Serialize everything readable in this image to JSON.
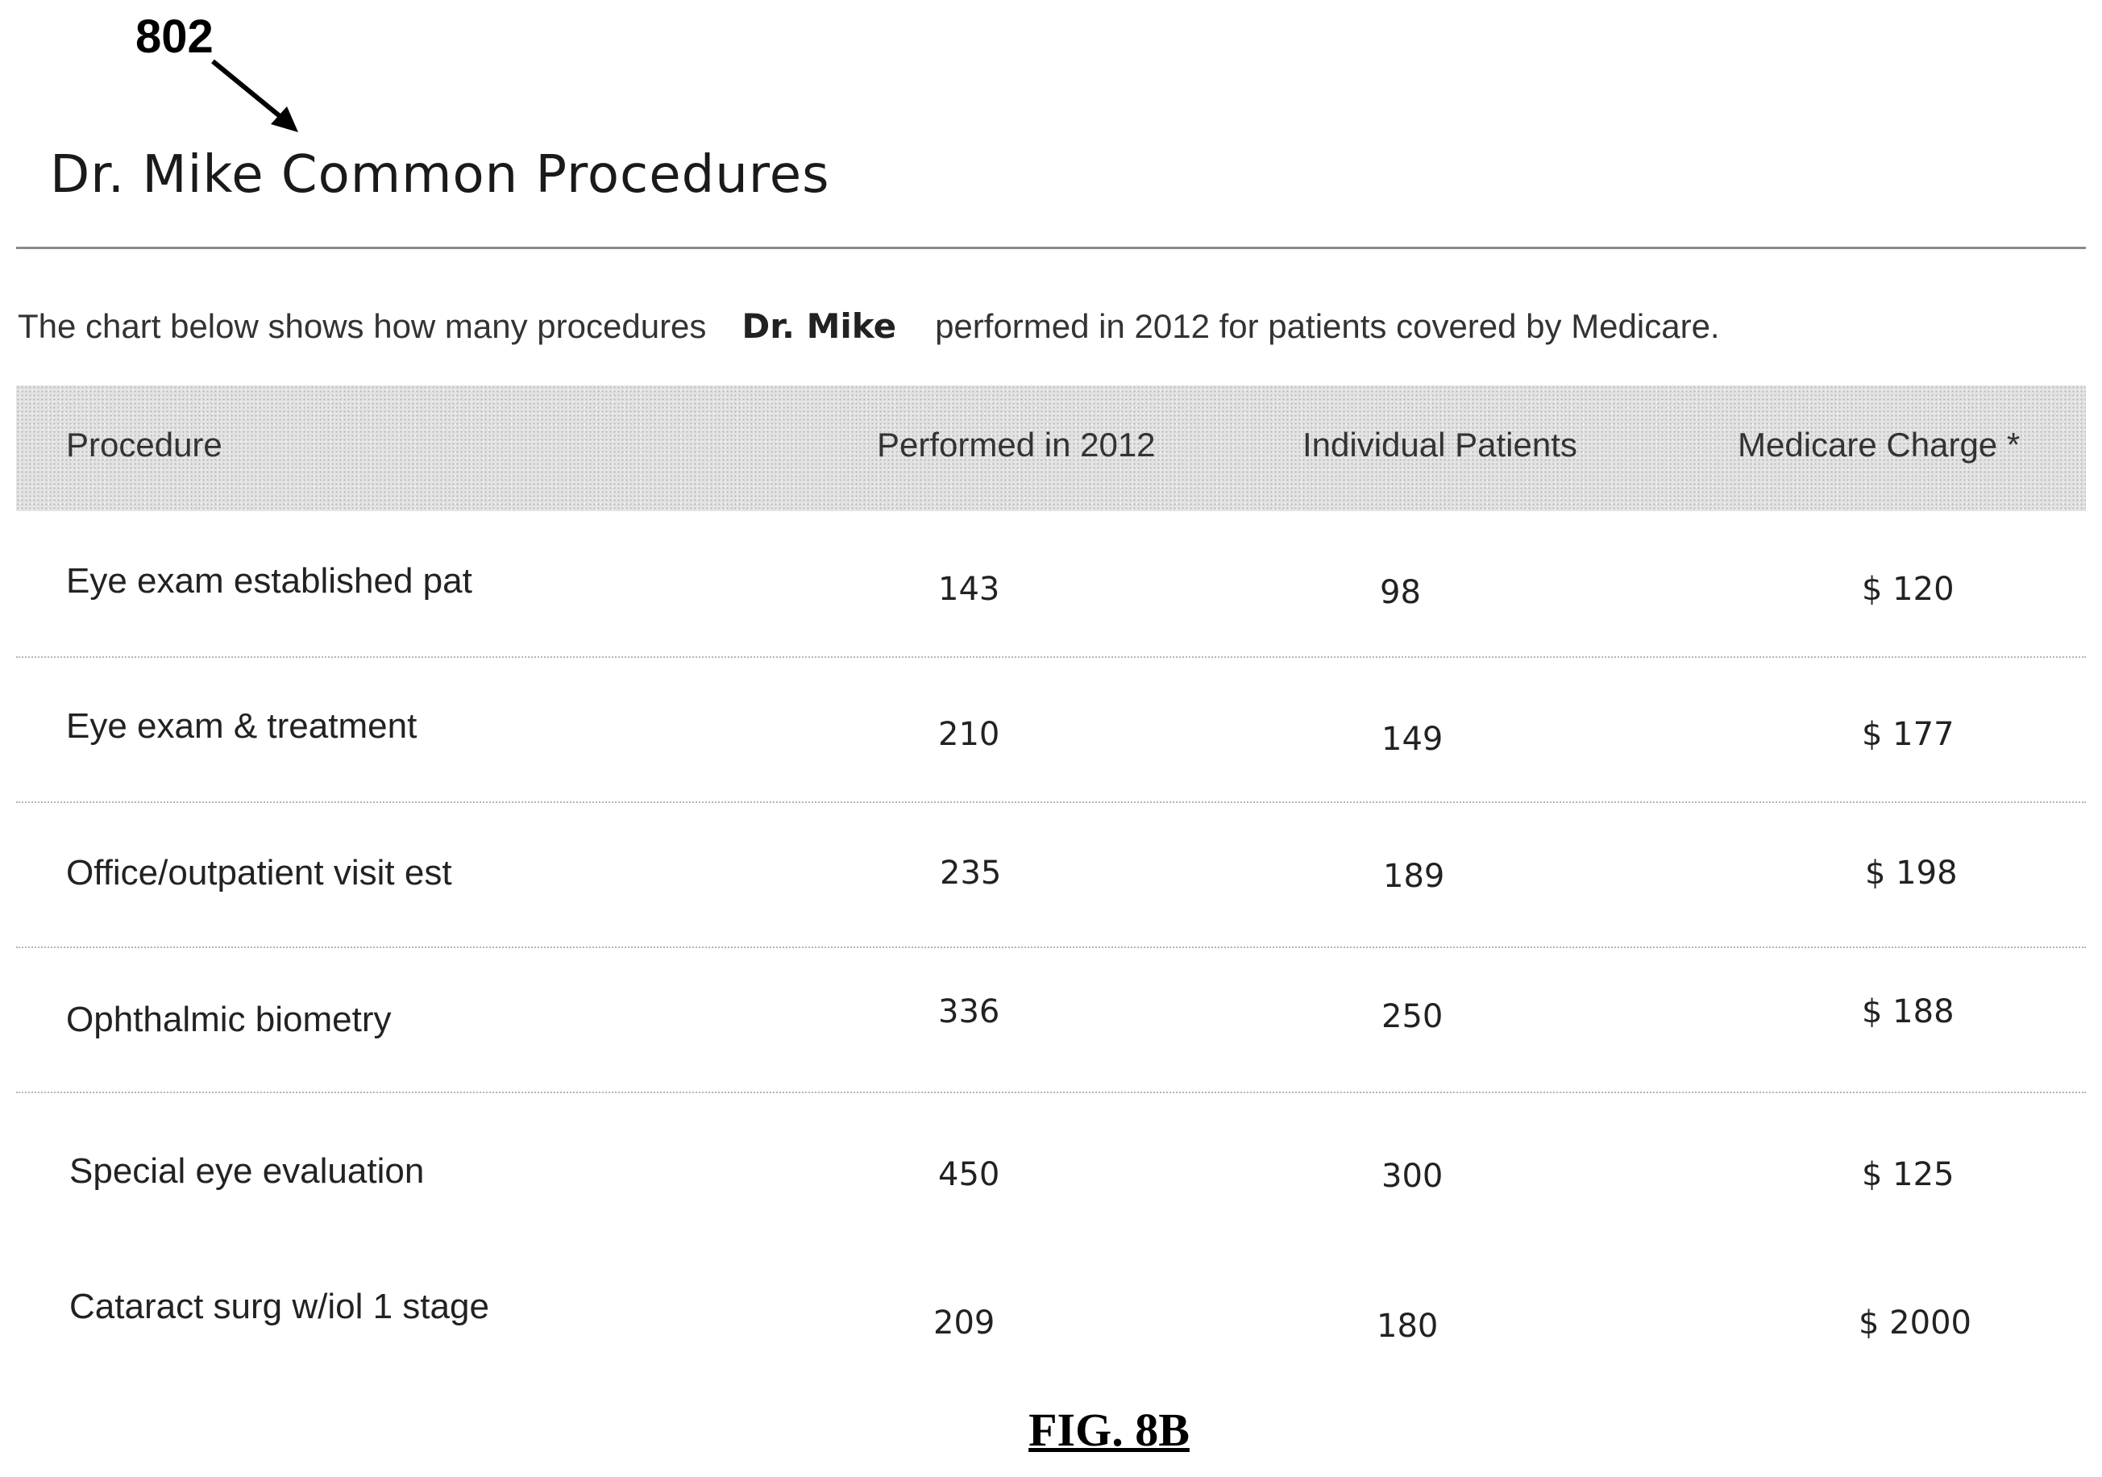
{
  "reference_numeral": "802",
  "page_title": "Dr. Mike Common Procedures",
  "intro": {
    "before": "The chart below shows how many procedures",
    "doctor": "Dr. Mike",
    "after": "performed in 2012 for patients covered by Medicare."
  },
  "table": {
    "headers": [
      "Procedure",
      "Performed in 2012",
      "Individual Patients",
      "Medicare Charge *"
    ],
    "rows": [
      {
        "procedure": "Eye exam established pat",
        "performed": "143",
        "patients": "98",
        "charge": "$ 120"
      },
      {
        "procedure": "Eye exam & treatment",
        "performed": "210",
        "patients": "149",
        "charge": "$ 177"
      },
      {
        "procedure": "Office/outpatient visit est",
        "performed": "235",
        "patients": "189",
        "charge": "$ 198"
      },
      {
        "procedure": "Ophthalmic biometry",
        "performed": "336",
        "patients": "250",
        "charge": "$ 188"
      },
      {
        "procedure": "Special eye evaluation",
        "performed": "450",
        "patients": "300",
        "charge": "$ 125"
      },
      {
        "procedure": "Cataract surg w/iol 1 stage",
        "performed": "209",
        "patients": "180",
        "charge": "$ 2000"
      }
    ]
  },
  "figure_caption": "FIG. 8B"
}
